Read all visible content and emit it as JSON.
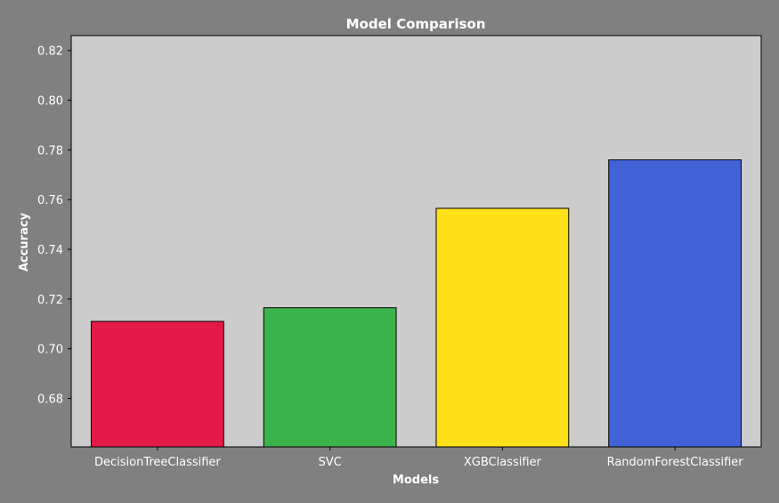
{
  "chart_data": {
    "type": "bar",
    "title": "Model Comparison",
    "xlabel": "Models",
    "ylabel": "Accuracy",
    "categories": [
      "DecisionTreeClassifier",
      "SVC",
      "XGBClassifier",
      "RandomForestClassifier"
    ],
    "values": [
      0.711,
      0.7165,
      0.7565,
      0.776
    ],
    "colors": [
      "#e51a47",
      "#3cb44c",
      "#ffe11a",
      "#4263d8"
    ],
    "ylim": [
      0.6605,
      0.826
    ],
    "yticks": [
      0.68,
      0.7,
      0.72,
      0.74,
      0.76,
      0.78,
      0.8,
      0.82
    ],
    "ytick_labels": [
      "0.68",
      "0.70",
      "0.72",
      "0.74",
      "0.76",
      "0.78",
      "0.80",
      "0.82"
    ],
    "grid": false,
    "background": "#808080",
    "plot_background": "#cccccc"
  }
}
